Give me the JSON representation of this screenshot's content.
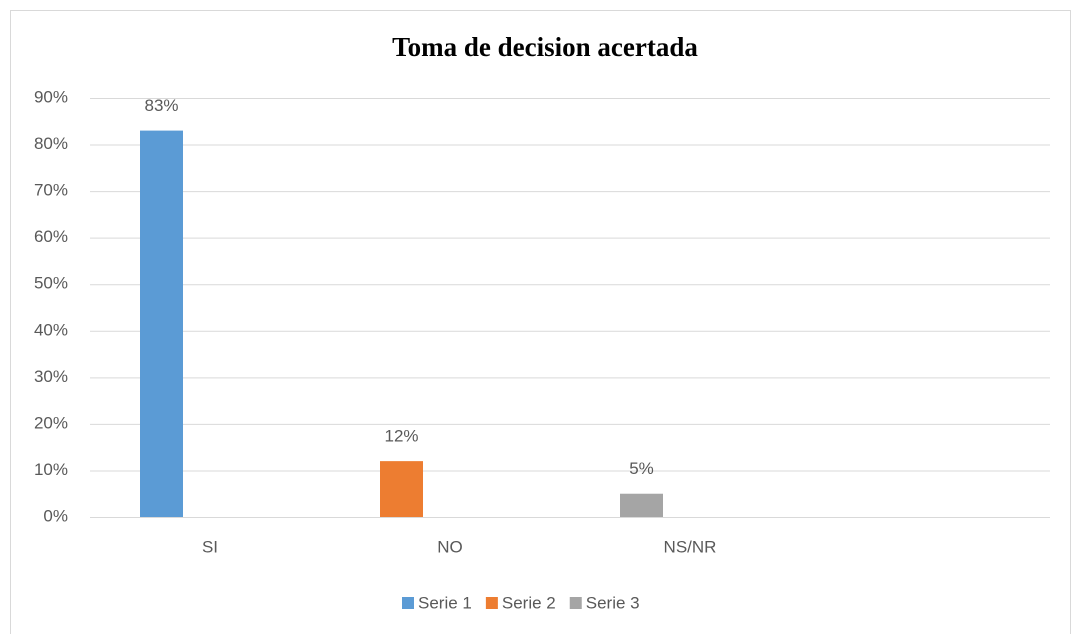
{
  "chart_data": {
    "type": "bar",
    "title": "Toma de decision acertada",
    "categories": [
      "SI",
      "NO",
      "NS/NR",
      null
    ],
    "series": [
      {
        "name": "Serie 1",
        "color": "#5b9bd5",
        "values": [
          83,
          null,
          null,
          null
        ],
        "value_labels": [
          "83%",
          null,
          null,
          null
        ]
      },
      {
        "name": "Serie 2",
        "color": "#ed7d31",
        "values": [
          null,
          12,
          null,
          null
        ],
        "value_labels": [
          null,
          "12%",
          null,
          null
        ]
      },
      {
        "name": "Serie 3",
        "color": "#a5a5a5",
        "values": [
          null,
          null,
          5,
          null
        ],
        "value_labels": [
          null,
          null,
          "5%",
          null
        ]
      }
    ],
    "ylim": [
      0,
      90
    ],
    "yticks": [
      {
        "value": 0,
        "label": "0%"
      },
      {
        "value": 10,
        "label": "10%"
      },
      {
        "value": 20,
        "label": "20%"
      },
      {
        "value": 30,
        "label": "30%"
      },
      {
        "value": 40,
        "label": "40%"
      },
      {
        "value": 50,
        "label": "50%"
      },
      {
        "value": 60,
        "label": "60%"
      },
      {
        "value": 70,
        "label": "70%"
      },
      {
        "value": 80,
        "label": "80%"
      },
      {
        "value": 90,
        "label": "90%"
      }
    ],
    "grid": true,
    "legend": "bottom"
  }
}
